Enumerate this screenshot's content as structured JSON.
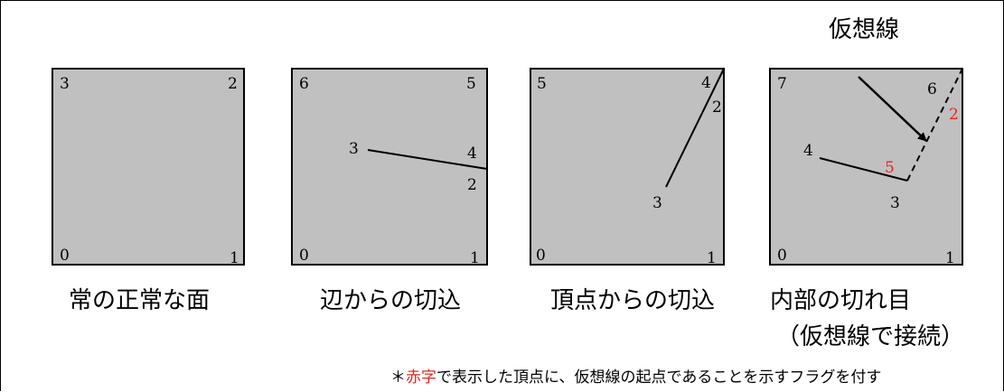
{
  "diagram": {
    "panels": [
      {
        "caption": "常の正常な面",
        "corners": {
          "tl": "3",
          "tr": "2",
          "bl": "0",
          "br": "1"
        },
        "cut_labels": []
      },
      {
        "caption": "辺からの切込",
        "corners": {
          "tl": "6",
          "tr": "5",
          "bl": "0",
          "br": "1"
        },
        "cut_labels": [
          "3",
          "4",
          "2"
        ]
      },
      {
        "caption": "頂点からの切込",
        "corners": {
          "tl": "5",
          "tr": "4",
          "bl": "0",
          "br": "1"
        },
        "cut_labels": [
          "2",
          "3"
        ]
      },
      {
        "caption": "内部の切れ目",
        "caption_sub": "（仮想線で接続）",
        "corners": {
          "tl": "7",
          "tr": "6",
          "bl": "0",
          "br": "1"
        },
        "cut_labels": [
          "4",
          "3",
          "5",
          "2"
        ],
        "callout": "仮想線"
      }
    ],
    "note": {
      "prefix": "＊",
      "highlight": "赤字",
      "rest": "で表示した頂点に、仮想線の起点であることを示すフラグを付す"
    },
    "colors": {
      "face": "#c0c0c0",
      "highlight": "#e8261d",
      "line": "#000000"
    }
  }
}
